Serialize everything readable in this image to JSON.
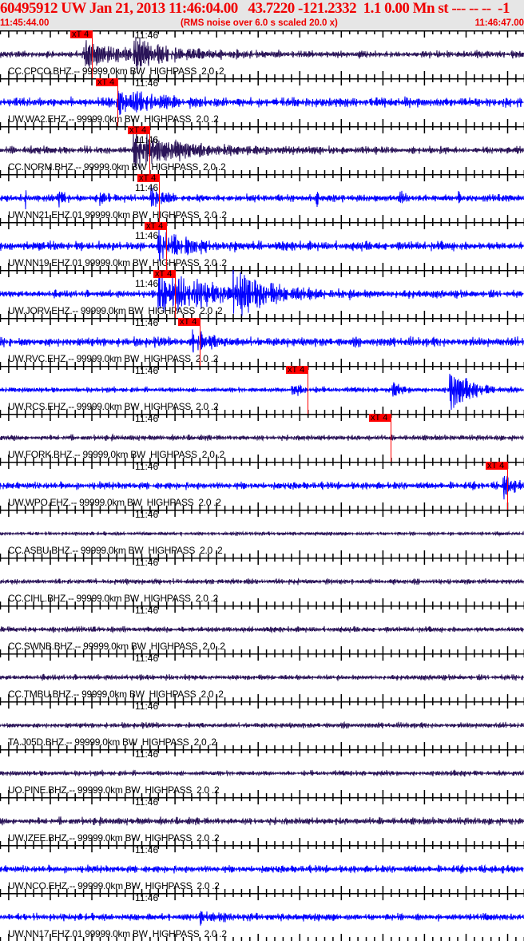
{
  "header": {
    "title": "60495912 UW Jan 21, 2013 11:46:04.00   43.7220 -121.2332  1.1 0.00 Mn st --- -- --  -1",
    "start_time": "11:45:44.00",
    "note": "(RMS noise over 6.0 s scaled 20.0 x)",
    "end_time": "11:46:47.00"
  },
  "time_axis": {
    "minute_label": "11:46"
  },
  "colors": {
    "header_text": "#f00000",
    "header_bg": "#e6e6e6",
    "bhz_trace": "#2a1458",
    "ehz_trace": "#0000ff",
    "pick": "#ff0000"
  },
  "traces": [
    {
      "label": "CC.CPCO.BHZ.-- 99999.0km BW  HIGHPASS  2.0 .2",
      "color": "#2a1458",
      "pick_label": "xT 4",
      "pick_time": "11:45:55.0"
    },
    {
      "label": "UW.WA2.EHZ.-- 99999.0km BW  HIGHPASS  2.0 .2",
      "color": "#0000ff",
      "pick_label": "xT 4",
      "pick_time": "11:45:58.1"
    },
    {
      "label": "CC.NORM.BHZ.-- 99999.0km BW  HIGHPASS  2.0 .2",
      "color": "#2a1458",
      "pick_label": "xT 4",
      "pick_time": "11:46:02.0"
    },
    {
      "label": "UW.NN21.EHZ.01 99999.0km BW  HIGHPASS  2.0 .2",
      "color": "#0000ff",
      "pick_label": "xT 4",
      "pick_time": "11:46:03.1"
    },
    {
      "label": "UW.NN19.EHZ.01 99999.0km BW  HIGHPASS  2.0 .2",
      "color": "#0000ff",
      "pick_label": "xT 4",
      "pick_time": "11:46:04.0"
    },
    {
      "label": "UW.JORV.EHZ.-- 99999.0km BW  HIGHPASS  2.0 .2",
      "color": "#0000ff",
      "pick_label": "xT 4",
      "pick_time": "11:46:05.0"
    },
    {
      "label": "UW.RVC.EHZ.-- 99999.0km BW  HIGHPASS  2.0 .2",
      "color": "#0000ff",
      "pick_label": "xT 4",
      "pick_time": "11:46:08.0"
    },
    {
      "label": "UW.RCS.EHZ.-- 99999.0km BW  HIGHPASS  2.0 .2",
      "color": "#0000ff",
      "pick_label": "xT 4",
      "pick_time": "11:46:21.0"
    },
    {
      "label": "UW.FORK.BHZ.-- 99999.0km BW  HIGHPASS  2.0 .2",
      "color": "#2a1458",
      "pick_label": "xT 4",
      "pick_time": "11:46:31.0"
    },
    {
      "label": "UW.WPO.EHZ.-- 99999.0km BW  HIGHPASS  2.0 .2",
      "color": "#0000ff",
      "pick_label": "xT 4",
      "pick_time": "11:46:45.0"
    },
    {
      "label": "CC.ASBU.BHZ.-- 99999.0km BW  HIGHPASS  2.0 .2",
      "color": "#2a1458"
    },
    {
      "label": "CC.CIHL.BHZ.-- 99999.0km BW  HIGHPASS  2.0 .2",
      "color": "#2a1458"
    },
    {
      "label": "CC.SWNB.BHZ.-- 99999.0km BW  HIGHPASS  2.0 .2",
      "color": "#2a1458"
    },
    {
      "label": "CC.TMBU.BHZ.-- 99999.0km BW  HIGHPASS  2.0 .2",
      "color": "#2a1458"
    },
    {
      "label": "TA.J05D.BHZ.-- 99999.0km BW  HIGHPASS  2.0 .2",
      "color": "#2a1458"
    },
    {
      "label": "UO.PINE.BHZ.-- 99999.0km BW  HIGHPASS  2.0 .2",
      "color": "#2a1458"
    },
    {
      "label": "UW.IZEE.BHZ.-- 99999.0km BW  HIGHPASS  2.0 .2",
      "color": "#2a1458"
    },
    {
      "label": "UW.NCO.EHZ.-- 99999.0km BW  HIGHPASS  2.0 .2",
      "color": "#0000ff"
    },
    {
      "label": "UW.NN17.EHZ.01 99999.0km BW  HIGHPASS  2.0 .2",
      "color": "#0000ff"
    }
  ]
}
